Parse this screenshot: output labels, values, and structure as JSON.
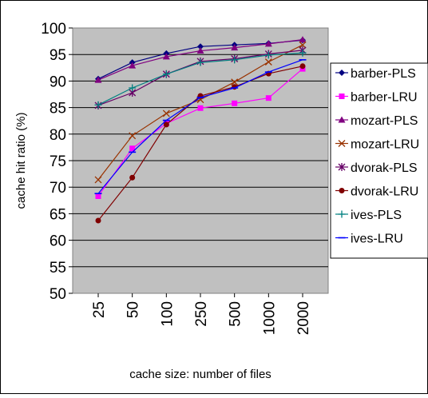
{
  "chart_data": {
    "type": "line",
    "title": "",
    "xlabel": "cache size: number of files",
    "ylabel": "cache hit ratio (%)",
    "categories": [
      "25",
      "50",
      "100",
      "250",
      "500",
      "1000",
      "2000"
    ],
    "ylim": [
      50,
      100
    ],
    "yticks": [
      50,
      55,
      60,
      65,
      70,
      75,
      80,
      85,
      90,
      95,
      100
    ],
    "grid": "horizontal",
    "plot_background": "#c0c0c0",
    "legend_placement": "right",
    "series": [
      {
        "name": "barber-PLS",
        "color": "#000080",
        "marker": "diamond",
        "values": [
          90.4,
          93.5,
          95.2,
          96.5,
          96.8,
          97.1,
          97.7
        ]
      },
      {
        "name": "barber-LRU",
        "color": "#ff00ff",
        "marker": "square",
        "values": [
          68.3,
          77.3,
          82.0,
          84.9,
          85.8,
          86.8,
          92.3
        ]
      },
      {
        "name": "mozart-PLS",
        "color": "#800080",
        "marker": "triangle",
        "values": [
          90.2,
          92.9,
          94.6,
          95.7,
          96.3,
          97.0,
          97.8
        ]
      },
      {
        "name": "mozart-LRU",
        "color": "#993300",
        "marker": "x",
        "values": [
          71.4,
          79.7,
          83.9,
          86.5,
          89.8,
          93.6,
          96.8
        ]
      },
      {
        "name": "dvorak-PLS",
        "color": "#660066",
        "marker": "asterisk",
        "values": [
          85.4,
          87.8,
          91.3,
          93.7,
          94.2,
          95.1,
          95.8
        ]
      },
      {
        "name": "dvorak-LRU",
        "color": "#800000",
        "marker": "circle",
        "values": [
          63.7,
          71.8,
          81.8,
          87.2,
          88.9,
          91.4,
          92.8
        ]
      },
      {
        "name": "ives-PLS",
        "color": "#008080",
        "marker": "plus",
        "values": [
          85.5,
          88.7,
          91.3,
          93.5,
          94.0,
          94.9,
          95.3
        ]
      },
      {
        "name": "ives-LRU",
        "color": "#0000ff",
        "marker": "dash",
        "values": [
          68.8,
          76.6,
          82.6,
          86.9,
          88.7,
          91.7,
          94.0
        ]
      }
    ]
  }
}
